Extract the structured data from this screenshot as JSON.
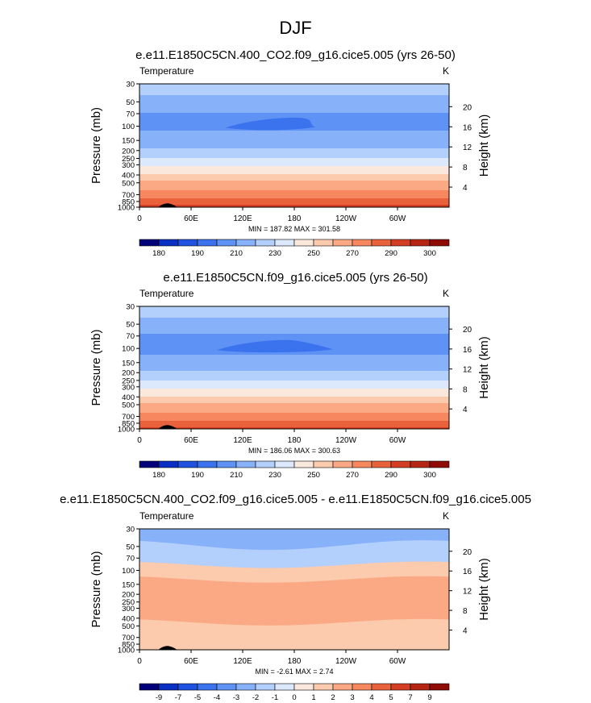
{
  "main_title": "DJF",
  "panels": [
    {
      "title": "e.e11.E1850C5CN.400_CO2.f09_g16.cice5.005 (yrs 26-50)",
      "left_label": "Temperature",
      "right_label": "K",
      "stats": "MIN = 187.82  MAX = 301.58"
    },
    {
      "title": "e.e11.E1850C5CN.f09_g16.cice5.005 (yrs 26-50)",
      "left_label": "Temperature",
      "right_label": "K",
      "stats": "MIN = 186.06  MAX = 300.63"
    },
    {
      "title": "e.e11.E1850C5CN.400_CO2.f09_g16.cice5.005 - e.e11.E1850C5CN.f09_g16.cice5.005",
      "left_label": "Temperature",
      "right_label": "K",
      "stats": "MIN = -2.61  MAX =  2.74"
    }
  ],
  "chart_data": [
    {
      "type": "heatmap",
      "subtype": "filled contour (longitude-pressure)",
      "title": "e.e11.E1850C5CN.400_CO2.f09_g16.cice5.005 (yrs 26-50)",
      "xlabel": "",
      "ylabel": "Pressure (mb)",
      "y2label": "Height (km)",
      "x_ticks": [
        "0",
        "60E",
        "120E",
        "180",
        "120W",
        "60W"
      ],
      "x_tick_degrees": [
        0,
        60,
        120,
        180,
        240,
        300
      ],
      "xlim": [
        0,
        360
      ],
      "y_ticks": [
        30,
        50,
        70,
        100,
        150,
        200,
        250,
        300,
        400,
        500,
        700,
        850,
        1000
      ],
      "ylim": [
        1000,
        30
      ],
      "y_scale": "log",
      "y2_ticks": [
        4,
        8,
        12,
        16,
        20
      ],
      "units": "K",
      "min": 187.82,
      "max": 301.58,
      "colorbar_labels": [
        "180",
        "190",
        "210",
        "230",
        "250",
        "270",
        "290",
        "300"
      ],
      "colorbar_colors": [
        "#00007a",
        "#0a2fc4",
        "#1f52e0",
        "#3b72ee",
        "#5e92f4",
        "#87b1f9",
        "#b3cffc",
        "#dce9fd",
        "#fbe8dc",
        "#fccaac",
        "#fba984",
        "#f6875e",
        "#ea623c",
        "#d43e22",
        "#b62512",
        "#8e0c05"
      ],
      "levels": [
        {
          "p": 30,
          "t": 225
        },
        {
          "p": 50,
          "t": 217
        },
        {
          "p": 70,
          "t": 210
        },
        {
          "p": 100,
          "t": 208
        },
        {
          "p": 150,
          "t": 215
        },
        {
          "p": 200,
          "t": 222
        },
        {
          "p": 250,
          "t": 230
        },
        {
          "p": 300,
          "t": 238
        },
        {
          "p": 400,
          "t": 252
        },
        {
          "p": 500,
          "t": 262
        },
        {
          "p": 700,
          "t": 276
        },
        {
          "p": 850,
          "t": 285
        },
        {
          "p": 1000,
          "t": 293
        }
      ],
      "cold_core": {
        "lon": [
          100,
          190,
          205
        ],
        "p": 100,
        "t": 196
      }
    },
    {
      "type": "heatmap",
      "subtype": "filled contour (longitude-pressure)",
      "title": "e.e11.E1850C5CN.f09_g16.cice5.005 (yrs 26-50)",
      "xlabel": "",
      "ylabel": "Pressure (mb)",
      "y2label": "Height (km)",
      "x_ticks": [
        "0",
        "60E",
        "120E",
        "180",
        "120W",
        "60W"
      ],
      "x_tick_degrees": [
        0,
        60,
        120,
        180,
        240,
        300
      ],
      "xlim": [
        0,
        360
      ],
      "y_ticks": [
        30,
        50,
        70,
        100,
        150,
        200,
        250,
        300,
        400,
        500,
        700,
        850,
        1000
      ],
      "ylim": [
        1000,
        30
      ],
      "y_scale": "log",
      "y2_ticks": [
        4,
        8,
        12,
        16,
        20
      ],
      "units": "K",
      "min": 186.06,
      "max": 300.63,
      "colorbar_labels": [
        "180",
        "190",
        "210",
        "230",
        "250",
        "270",
        "290",
        "300"
      ],
      "colorbar_colors": [
        "#00007a",
        "#0a2fc4",
        "#1f52e0",
        "#3b72ee",
        "#5e92f4",
        "#87b1f9",
        "#b3cffc",
        "#dce9fd",
        "#fbe8dc",
        "#fccaac",
        "#fba984",
        "#f6875e",
        "#ea623c",
        "#d43e22",
        "#b62512",
        "#8e0c05"
      ],
      "levels": [
        {
          "p": 30,
          "t": 225
        },
        {
          "p": 50,
          "t": 217
        },
        {
          "p": 70,
          "t": 209
        },
        {
          "p": 100,
          "t": 207
        },
        {
          "p": 150,
          "t": 214
        },
        {
          "p": 200,
          "t": 221
        },
        {
          "p": 250,
          "t": 229
        },
        {
          "p": 300,
          "t": 237
        },
        {
          "p": 400,
          "t": 251
        },
        {
          "p": 500,
          "t": 261
        },
        {
          "p": 700,
          "t": 275
        },
        {
          "p": 850,
          "t": 284
        },
        {
          "p": 1000,
          "t": 292
        }
      ],
      "cold_core": {
        "lon": [
          90,
          180,
          225
        ],
        "p": 100,
        "t": 195
      }
    },
    {
      "type": "heatmap",
      "subtype": "filled contour (longitude-pressure), difference",
      "title": "e.e11.E1850C5CN.400_CO2.f09_g16.cice5.005 - e.e11.E1850C5CN.f09_g16.cice5.005",
      "xlabel": "",
      "ylabel": "Pressure (mb)",
      "y2label": "Height (km)",
      "x_ticks": [
        "0",
        "60E",
        "120E",
        "180",
        "120W",
        "60W"
      ],
      "x_tick_degrees": [
        0,
        60,
        120,
        180,
        240,
        300
      ],
      "xlim": [
        0,
        360
      ],
      "y_ticks": [
        30,
        50,
        70,
        100,
        150,
        200,
        250,
        300,
        400,
        500,
        700,
        850,
        1000
      ],
      "ylim": [
        1000,
        30
      ],
      "y_scale": "log",
      "y2_ticks": [
        4,
        8,
        12,
        16,
        20
      ],
      "units": "K",
      "min": -2.61,
      "max": 2.74,
      "colorbar_labels": [
        "-9",
        "-7",
        "-5",
        "-4",
        "-3",
        "-2",
        "-1",
        "0",
        "1",
        "2",
        "3",
        "4",
        "5",
        "7",
        "9"
      ],
      "colorbar_colors": [
        "#00007a",
        "#0a2fc4",
        "#1f52e0",
        "#3b72ee",
        "#5e92f4",
        "#87b1f9",
        "#b3cffc",
        "#dce9fd",
        "#fbe8dc",
        "#fccaac",
        "#fba984",
        "#f6875e",
        "#ea623c",
        "#d43e22",
        "#b62512",
        "#8e0c05"
      ],
      "bands": [
        {
          "p_top": 30,
          "p_bot": 48,
          "value": -2,
          "color": "#87b1f9"
        },
        {
          "p_top": 48,
          "p_bot": 85,
          "value": -1,
          "color": "#b3cffc"
        },
        {
          "p_top": 85,
          "p_bot": 130,
          "value": 1,
          "color": "#fccaac"
        },
        {
          "p_top": 130,
          "p_bot": 450,
          "value": 2,
          "color": "#fba984"
        },
        {
          "p_top": 450,
          "p_bot": 1000,
          "value": 1,
          "color": "#fccaac"
        }
      ]
    }
  ]
}
